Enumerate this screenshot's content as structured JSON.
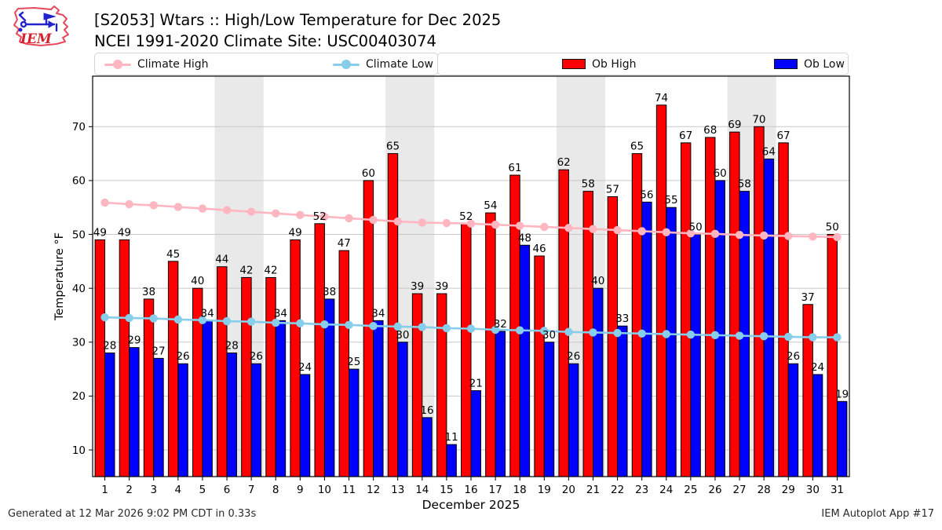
{
  "header": {
    "title_line1": "[S2053] Wtars :: High/Low Temperature for Dec 2025",
    "title_line2": "NCEI 1991-2020 Climate Site: USC00403074"
  },
  "logo": {
    "text": "IEM"
  },
  "legend": {
    "items": [
      {
        "label": "Climate High",
        "type": "line",
        "color": "#ffb6c1"
      },
      {
        "label": "Climate Low",
        "type": "line",
        "color": "#87ceeb"
      },
      {
        "label": "Ob High",
        "type": "swatch",
        "color": "#ff0000"
      },
      {
        "label": "Ob Low",
        "type": "swatch",
        "color": "#0000ff"
      }
    ]
  },
  "footer": {
    "left": "Generated at 12 Mar 2026 9:02 PM CDT in 0.33s",
    "right": "IEM Autoplot App #17"
  },
  "chart_data": {
    "type": "bar",
    "title": "[S2053] Wtars :: High/Low Temperature for Dec 2025",
    "subtitle": "NCEI 1991-2020 Climate Site: USC00403074",
    "xlabel": "December 2025",
    "ylabel": "Temperature °F",
    "ylim": [
      5.05,
      79.37
    ],
    "yticks": [
      10,
      20,
      30,
      40,
      50,
      60,
      70
    ],
    "grid": true,
    "legend_position": "top",
    "days": [
      1,
      2,
      3,
      4,
      5,
      6,
      7,
      8,
      9,
      10,
      11,
      12,
      13,
      14,
      15,
      16,
      17,
      18,
      19,
      20,
      21,
      22,
      23,
      24,
      25,
      26,
      27,
      28,
      29,
      30,
      31
    ],
    "weekend_bands": [
      [
        5.5,
        7.5
      ],
      [
        12.5,
        14.5
      ],
      [
        19.5,
        21.5
      ],
      [
        26.5,
        28.5
      ]
    ],
    "band_color": "#e9e9e9",
    "grid_color": "#c8c8c8",
    "series": [
      {
        "name": "Ob High",
        "type": "bar",
        "color": "#ff0000",
        "values": [
          49,
          49,
          38,
          45,
          40,
          44,
          42,
          42,
          49,
          52,
          47,
          60,
          65,
          39,
          39,
          52,
          54,
          61,
          46,
          62,
          58,
          57,
          65,
          74,
          67,
          68,
          69,
          70,
          67,
          37,
          50
        ]
      },
      {
        "name": "Ob Low",
        "type": "bar",
        "color": "#0000ff",
        "values": [
          28,
          29,
          27,
          26,
          34,
          28,
          26,
          34,
          24,
          38,
          25,
          34,
          30,
          16,
          11,
          21,
          32,
          48,
          30,
          26,
          40,
          33,
          56,
          55,
          50,
          60,
          58,
          64,
          26,
          24,
          19
        ]
      },
      {
        "name": "Climate High",
        "type": "line",
        "color": "#ffb6c1",
        "values": [
          55.9,
          55.6,
          55.4,
          55.1,
          54.8,
          54.5,
          54.2,
          53.9,
          53.6,
          53.3,
          53.0,
          52.7,
          52.4,
          52.2,
          52.1,
          52.0,
          51.8,
          51.6,
          51.4,
          51.2,
          51.0,
          50.8,
          50.6,
          50.4,
          50.2,
          50.1,
          49.9,
          49.8,
          49.7,
          49.6,
          49.5
        ]
      },
      {
        "name": "Climate Low",
        "type": "line",
        "color": "#87ceeb",
        "values": [
          34.6,
          34.5,
          34.4,
          34.2,
          34.1,
          33.9,
          33.8,
          33.6,
          33.5,
          33.3,
          33.2,
          33.0,
          32.9,
          32.8,
          32.6,
          32.5,
          32.3,
          32.2,
          32.1,
          31.9,
          31.8,
          31.7,
          31.6,
          31.5,
          31.4,
          31.3,
          31.2,
          31.1,
          31.0,
          30.9,
          30.9
        ]
      }
    ]
  }
}
